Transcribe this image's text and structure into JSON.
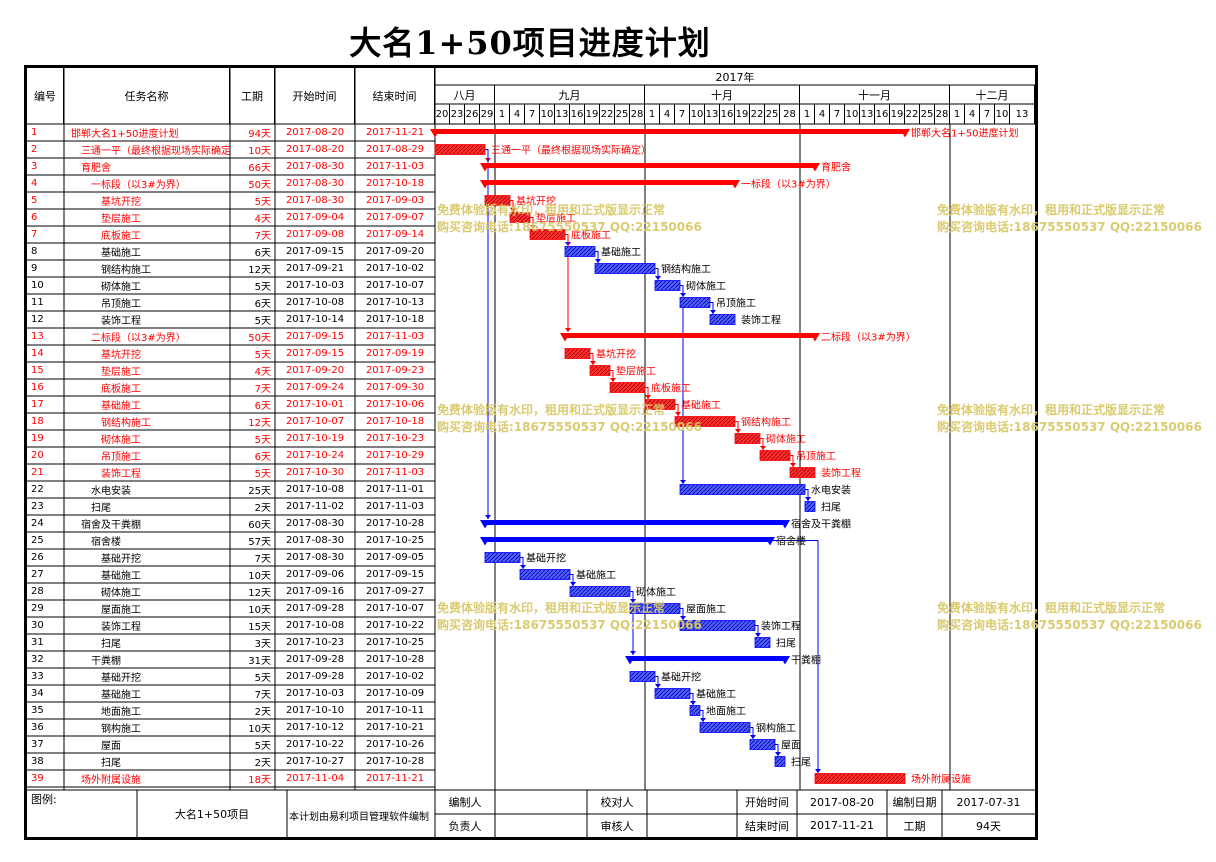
{
  "title": "大名1+50项目进度计划",
  "header": {
    "col_id": "编号",
    "col_name": "任务名称",
    "col_duration": "工期",
    "col_start": "开始时间",
    "col_end": "结束时间",
    "year": "2017年",
    "months": [
      "八月",
      "九月",
      "十月",
      "十一月",
      "十二月"
    ],
    "days": [
      "20",
      "23",
      "26",
      "29",
      "1",
      "4",
      "7",
      "10",
      "13",
      "16",
      "19",
      "22",
      "25",
      "28",
      "1",
      "4",
      "7",
      "10",
      "13",
      "16",
      "19",
      "22",
      "25",
      "28",
      "1",
      "4",
      "7",
      "10",
      "13",
      "16",
      "19",
      "22",
      "25",
      "28",
      "1",
      "4",
      "7",
      "10",
      "13"
    ]
  },
  "colors": {
    "critical": "#ff0000",
    "normal": "#0000ff",
    "watermark": "#d9c96a"
  },
  "chart_data": {
    "type": "gantt",
    "title": "大名1+50项目进度计划",
    "x_range": [
      "2017-08-20",
      "2017-12-15"
    ],
    "tasks": [
      {
        "id": "1",
        "name": "邯郸大名1+50进度计划",
        "duration": "94天",
        "start": "2017-08-20",
        "end": "2017-11-21",
        "critical": true,
        "summary": true,
        "indent": 0
      },
      {
        "id": "2",
        "name": "三通一平（最终根据现场实际确定）",
        "duration": "10天",
        "start": "2017-08-20",
        "end": "2017-08-29",
        "critical": true,
        "summary": false,
        "indent": 1
      },
      {
        "id": "3",
        "name": "育肥舍",
        "duration": "66天",
        "start": "2017-08-30",
        "end": "2017-11-03",
        "critical": true,
        "summary": true,
        "indent": 1
      },
      {
        "id": "4",
        "name": "一标段（以3#为界）",
        "duration": "50天",
        "start": "2017-08-30",
        "end": "2017-10-18",
        "critical": true,
        "summary": true,
        "indent": 2
      },
      {
        "id": "5",
        "name": "基坑开挖",
        "duration": "5天",
        "start": "2017-08-30",
        "end": "2017-09-03",
        "critical": true,
        "summary": false,
        "indent": 3
      },
      {
        "id": "6",
        "name": "垫层施工",
        "duration": "4天",
        "start": "2017-09-04",
        "end": "2017-09-07",
        "critical": true,
        "summary": false,
        "indent": 3
      },
      {
        "id": "7",
        "name": "底板施工",
        "duration": "7天",
        "start": "2017-09-08",
        "end": "2017-09-14",
        "critical": true,
        "summary": false,
        "indent": 3
      },
      {
        "id": "8",
        "name": "基础施工",
        "duration": "6天",
        "start": "2017-09-15",
        "end": "2017-09-20",
        "critical": false,
        "summary": false,
        "indent": 3
      },
      {
        "id": "9",
        "name": "钢结构施工",
        "duration": "12天",
        "start": "2017-09-21",
        "end": "2017-10-02",
        "critical": false,
        "summary": false,
        "indent": 3
      },
      {
        "id": "10",
        "name": "砌体施工",
        "duration": "5天",
        "start": "2017-10-03",
        "end": "2017-10-07",
        "critical": false,
        "summary": false,
        "indent": 3
      },
      {
        "id": "11",
        "name": "吊顶施工",
        "duration": "6天",
        "start": "2017-10-08",
        "end": "2017-10-13",
        "critical": false,
        "summary": false,
        "indent": 3
      },
      {
        "id": "12",
        "name": "装饰工程",
        "duration": "5天",
        "start": "2017-10-14",
        "end": "2017-10-18",
        "critical": false,
        "summary": false,
        "indent": 3
      },
      {
        "id": "13",
        "name": "二标段（以3#为界）",
        "duration": "50天",
        "start": "2017-09-15",
        "end": "2017-11-03",
        "critical": true,
        "summary": true,
        "indent": 2
      },
      {
        "id": "14",
        "name": "基坑开挖",
        "duration": "5天",
        "start": "2017-09-15",
        "end": "2017-09-19",
        "critical": true,
        "summary": false,
        "indent": 3
      },
      {
        "id": "15",
        "name": "垫层施工",
        "duration": "4天",
        "start": "2017-09-20",
        "end": "2017-09-23",
        "critical": true,
        "summary": false,
        "indent": 3
      },
      {
        "id": "16",
        "name": "底板施工",
        "duration": "7天",
        "start": "2017-09-24",
        "end": "2017-09-30",
        "critical": true,
        "summary": false,
        "indent": 3
      },
      {
        "id": "17",
        "name": "基础施工",
        "duration": "6天",
        "start": "2017-10-01",
        "end": "2017-10-06",
        "critical": true,
        "summary": false,
        "indent": 3
      },
      {
        "id": "18",
        "name": "钢结构施工",
        "duration": "12天",
        "start": "2017-10-07",
        "end": "2017-10-18",
        "critical": true,
        "summary": false,
        "indent": 3
      },
      {
        "id": "19",
        "name": "砌体施工",
        "duration": "5天",
        "start": "2017-10-19",
        "end": "2017-10-23",
        "critical": true,
        "summary": false,
        "indent": 3
      },
      {
        "id": "20",
        "name": "吊顶施工",
        "duration": "6天",
        "start": "2017-10-24",
        "end": "2017-10-29",
        "critical": true,
        "summary": false,
        "indent": 3
      },
      {
        "id": "21",
        "name": "装饰工程",
        "duration": "5天",
        "start": "2017-10-30",
        "end": "2017-11-03",
        "critical": true,
        "summary": false,
        "indent": 3
      },
      {
        "id": "22",
        "name": "水电安装",
        "duration": "25天",
        "start": "2017-10-08",
        "end": "2017-11-01",
        "critical": false,
        "summary": false,
        "indent": 2
      },
      {
        "id": "23",
        "name": "扫尾",
        "duration": "2天",
        "start": "2017-11-02",
        "end": "2017-11-03",
        "critical": false,
        "summary": false,
        "indent": 2
      },
      {
        "id": "24",
        "name": "宿舍及干粪棚",
        "duration": "60天",
        "start": "2017-08-30",
        "end": "2017-10-28",
        "critical": false,
        "summary": true,
        "indent": 1
      },
      {
        "id": "25",
        "name": "宿舍楼",
        "duration": "57天",
        "start": "2017-08-30",
        "end": "2017-10-25",
        "critical": false,
        "summary": true,
        "indent": 2
      },
      {
        "id": "26",
        "name": "基础开挖",
        "duration": "7天",
        "start": "2017-08-30",
        "end": "2017-09-05",
        "critical": false,
        "summary": false,
        "indent": 3
      },
      {
        "id": "27",
        "name": "基础施工",
        "duration": "10天",
        "start": "2017-09-06",
        "end": "2017-09-15",
        "critical": false,
        "summary": false,
        "indent": 3
      },
      {
        "id": "28",
        "name": "砌体施工",
        "duration": "12天",
        "start": "2017-09-16",
        "end": "2017-09-27",
        "critical": false,
        "summary": false,
        "indent": 3
      },
      {
        "id": "29",
        "name": "屋面施工",
        "duration": "10天",
        "start": "2017-09-28",
        "end": "2017-10-07",
        "critical": false,
        "summary": false,
        "indent": 3
      },
      {
        "id": "30",
        "name": "装饰工程",
        "duration": "15天",
        "start": "2017-10-08",
        "end": "2017-10-22",
        "critical": false,
        "summary": false,
        "indent": 3
      },
      {
        "id": "31",
        "name": "扫尾",
        "duration": "3天",
        "start": "2017-10-23",
        "end": "2017-10-25",
        "critical": false,
        "summary": false,
        "indent": 3
      },
      {
        "id": "32",
        "name": "干粪棚",
        "duration": "31天",
        "start": "2017-09-28",
        "end": "2017-10-28",
        "critical": false,
        "summary": true,
        "indent": 2
      },
      {
        "id": "33",
        "name": "基础开挖",
        "duration": "5天",
        "start": "2017-09-28",
        "end": "2017-10-02",
        "critical": false,
        "summary": false,
        "indent": 3
      },
      {
        "id": "34",
        "name": "基础施工",
        "duration": "7天",
        "start": "2017-10-03",
        "end": "2017-10-09",
        "critical": false,
        "summary": false,
        "indent": 3
      },
      {
        "id": "35",
        "name": "地面施工",
        "duration": "2天",
        "start": "2017-10-10",
        "end": "2017-10-11",
        "critical": false,
        "summary": false,
        "indent": 3
      },
      {
        "id": "36",
        "name": "钢构施工",
        "duration": "10天",
        "start": "2017-10-12",
        "end": "2017-10-21",
        "critical": false,
        "summary": false,
        "indent": 3
      },
      {
        "id": "37",
        "name": "屋面",
        "duration": "5天",
        "start": "2017-10-22",
        "end": "2017-10-26",
        "critical": false,
        "summary": false,
        "indent": 3
      },
      {
        "id": "38",
        "name": "扫尾",
        "duration": "2天",
        "start": "2017-10-27",
        "end": "2017-10-28",
        "critical": false,
        "summary": false,
        "indent": 3
      },
      {
        "id": "39",
        "name": "场外附属设施",
        "duration": "18天",
        "start": "2017-11-04",
        "end": "2017-11-21",
        "critical": true,
        "summary": false,
        "indent": 1
      }
    ]
  },
  "watermark": {
    "line1": "免费体验版有水印，租用和正式版显示正常",
    "line2": "购买咨询电话:18675550537 QQ:22150066"
  },
  "footer": {
    "legend_label": "图例:",
    "project": "大名1+50项目",
    "software_note": "本计划由易利项目管理软件编制",
    "compiler_label": "编制人",
    "compiler_value": "",
    "checker_label": "校对人",
    "checker_value": "",
    "start_label": "开始时间",
    "start_value": "2017-08-20",
    "compile_date_label": "编制日期",
    "compile_date_value": "2017-07-31",
    "owner_label": "负责人",
    "owner_value": "",
    "reviewer_label": "审核人",
    "reviewer_value": "",
    "end_label": "结束时间",
    "end_value": "2017-11-21",
    "duration_label": "工期",
    "duration_value": "94天"
  }
}
